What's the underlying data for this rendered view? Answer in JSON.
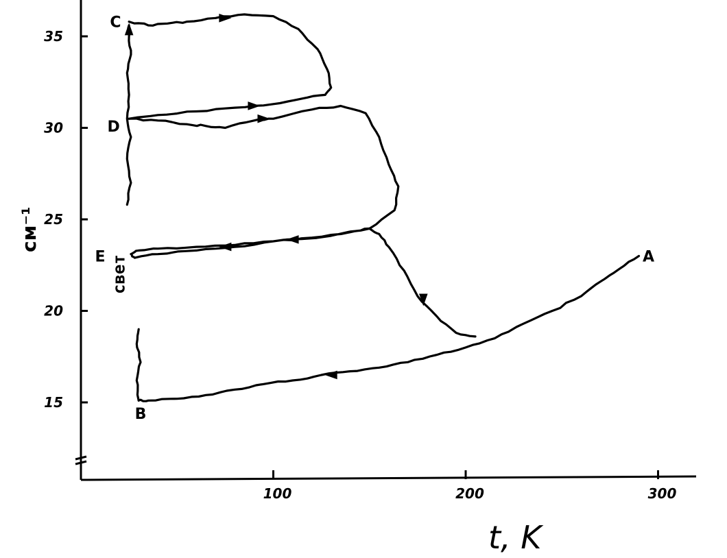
{
  "chart_data": {
    "type": "line",
    "title": "",
    "xlabel": "t, K",
    "ylabel": "см⁻¹",
    "xlim": [
      0,
      310
    ],
    "ylim": [
      11,
      37
    ],
    "x_ticks": [
      {
        "value": 100,
        "label": "100"
      },
      {
        "value": 200,
        "label": "200"
      },
      {
        "value": 300,
        "label": "300"
      }
    ],
    "y_ticks": [
      {
        "value": 15,
        "label": "15"
      },
      {
        "value": 20,
        "label": "20"
      },
      {
        "value": 25,
        "label": "25"
      },
      {
        "value": 30,
        "label": "30"
      },
      {
        "value": 35,
        "label": "35"
      }
    ],
    "grid": false,
    "annotations": [
      {
        "text": "свет",
        "x": 24,
        "y": 22
      }
    ],
    "point_labels": [
      {
        "text": "A",
        "x": 295,
        "y": 23
      },
      {
        "text": "B",
        "x": 31,
        "y": 14.4
      },
      {
        "text": "C",
        "x": 18,
        "y": 35.8
      },
      {
        "text": "D",
        "x": 17,
        "y": 30.1
      },
      {
        "text": "E",
        "x": 10,
        "y": 23
      }
    ],
    "series": [
      {
        "points": [
          [
            290,
            23
          ],
          [
            280,
            22.3
          ],
          [
            270,
            21.6
          ],
          [
            260,
            20.8
          ],
          [
            245,
            20.0
          ],
          [
            230,
            19.3
          ],
          [
            215,
            18.5
          ],
          [
            200,
            18.0
          ],
          [
            185,
            17.6
          ],
          [
            170,
            17.2
          ],
          [
            155,
            16.9
          ],
          [
            140,
            16.7
          ],
          [
            125,
            16.5
          ],
          [
            110,
            16.2
          ],
          [
            95,
            16.0
          ],
          [
            80,
            15.7
          ],
          [
            65,
            15.4
          ],
          [
            50,
            15.2
          ],
          [
            35,
            15.1
          ],
          [
            30,
            15.1
          ]
        ],
        "arrows": [
          {
            "x": 130,
            "y": 16.5,
            "dir": "left"
          }
        ]
      },
      {
        "points": [
          [
            30,
            15.1
          ],
          [
            29,
            16.2
          ],
          [
            31,
            17.2
          ],
          [
            29,
            18.2
          ],
          [
            30,
            19.0
          ]
        ]
      },
      {
        "points": [
          [
            205,
            18.6
          ],
          [
            195,
            18.8
          ],
          [
            185,
            19.7
          ],
          [
            175,
            20.8
          ],
          [
            168,
            22.2
          ],
          [
            160,
            23.5
          ],
          [
            155,
            24.2
          ],
          [
            150,
            24.5
          ],
          [
            140,
            24.3
          ],
          [
            120,
            24.0
          ],
          [
            100,
            23.8
          ],
          [
            80,
            23.6
          ],
          [
            60,
            23.5
          ],
          [
            40,
            23.4
          ],
          [
            30,
            23.3
          ],
          [
            26,
            23.1
          ],
          [
            28,
            22.9
          ],
          [
            40,
            23.1
          ],
          [
            60,
            23.3
          ],
          [
            80,
            23.5
          ],
          [
            100,
            23.8
          ],
          [
            130,
            24.1
          ],
          [
            150,
            24.5
          ]
        ],
        "arrows": [
          {
            "x": 178,
            "y": 20.6,
            "dir": "down"
          },
          {
            "x": 110,
            "y": 23.9,
            "dir": "left"
          },
          {
            "x": 75,
            "y": 23.5,
            "dir": "left"
          }
        ]
      },
      {
        "points": [
          [
            150,
            24.5
          ],
          [
            163,
            25.5
          ],
          [
            165,
            26.8
          ],
          [
            160,
            28.0
          ],
          [
            155,
            29.5
          ],
          [
            148,
            30.8
          ],
          [
            135,
            31.2
          ],
          [
            120,
            31.0
          ],
          [
            100,
            30.5
          ],
          [
            90,
            30.4
          ],
          [
            75,
            30.0
          ],
          [
            65,
            30.1
          ],
          [
            55,
            30.2
          ],
          [
            40,
            30.4
          ],
          [
            25,
            30.5
          ]
        ],
        "arrows": [
          {
            "x": 95,
            "y": 30.5,
            "dir": "right"
          }
        ]
      },
      {
        "points": [
          [
            24,
            25.8
          ],
          [
            26,
            27.0
          ],
          [
            24,
            28.3
          ],
          [
            26,
            29.5
          ],
          [
            24,
            30.5
          ],
          [
            25,
            31.8
          ],
          [
            24,
            33.0
          ],
          [
            26,
            34.0
          ],
          [
            25,
            35.0
          ],
          [
            25,
            35.6
          ]
        ],
        "arrows": [
          {
            "x": 25,
            "y": 35.4,
            "dir": "up"
          }
        ]
      },
      {
        "points": [
          [
            25,
            30.5
          ],
          [
            40,
            30.7
          ],
          [
            60,
            30.9
          ],
          [
            80,
            31.1
          ],
          [
            100,
            31.3
          ],
          [
            115,
            31.6
          ],
          [
            127,
            31.8
          ],
          [
            130,
            32.2
          ],
          [
            128,
            33.2
          ],
          [
            123,
            34.3
          ],
          [
            113,
            35.4
          ],
          [
            100,
            36.1
          ],
          [
            85,
            36.2
          ],
          [
            70,
            36.0
          ],
          [
            55,
            35.8
          ],
          [
            45,
            35.7
          ],
          [
            35,
            35.6
          ],
          [
            25,
            35.8
          ]
        ],
        "arrows": [
          {
            "x": 90,
            "y": 31.2,
            "dir": "right"
          },
          {
            "x": 75,
            "y": 36.0,
            "dir": "right"
          }
        ]
      }
    ]
  }
}
